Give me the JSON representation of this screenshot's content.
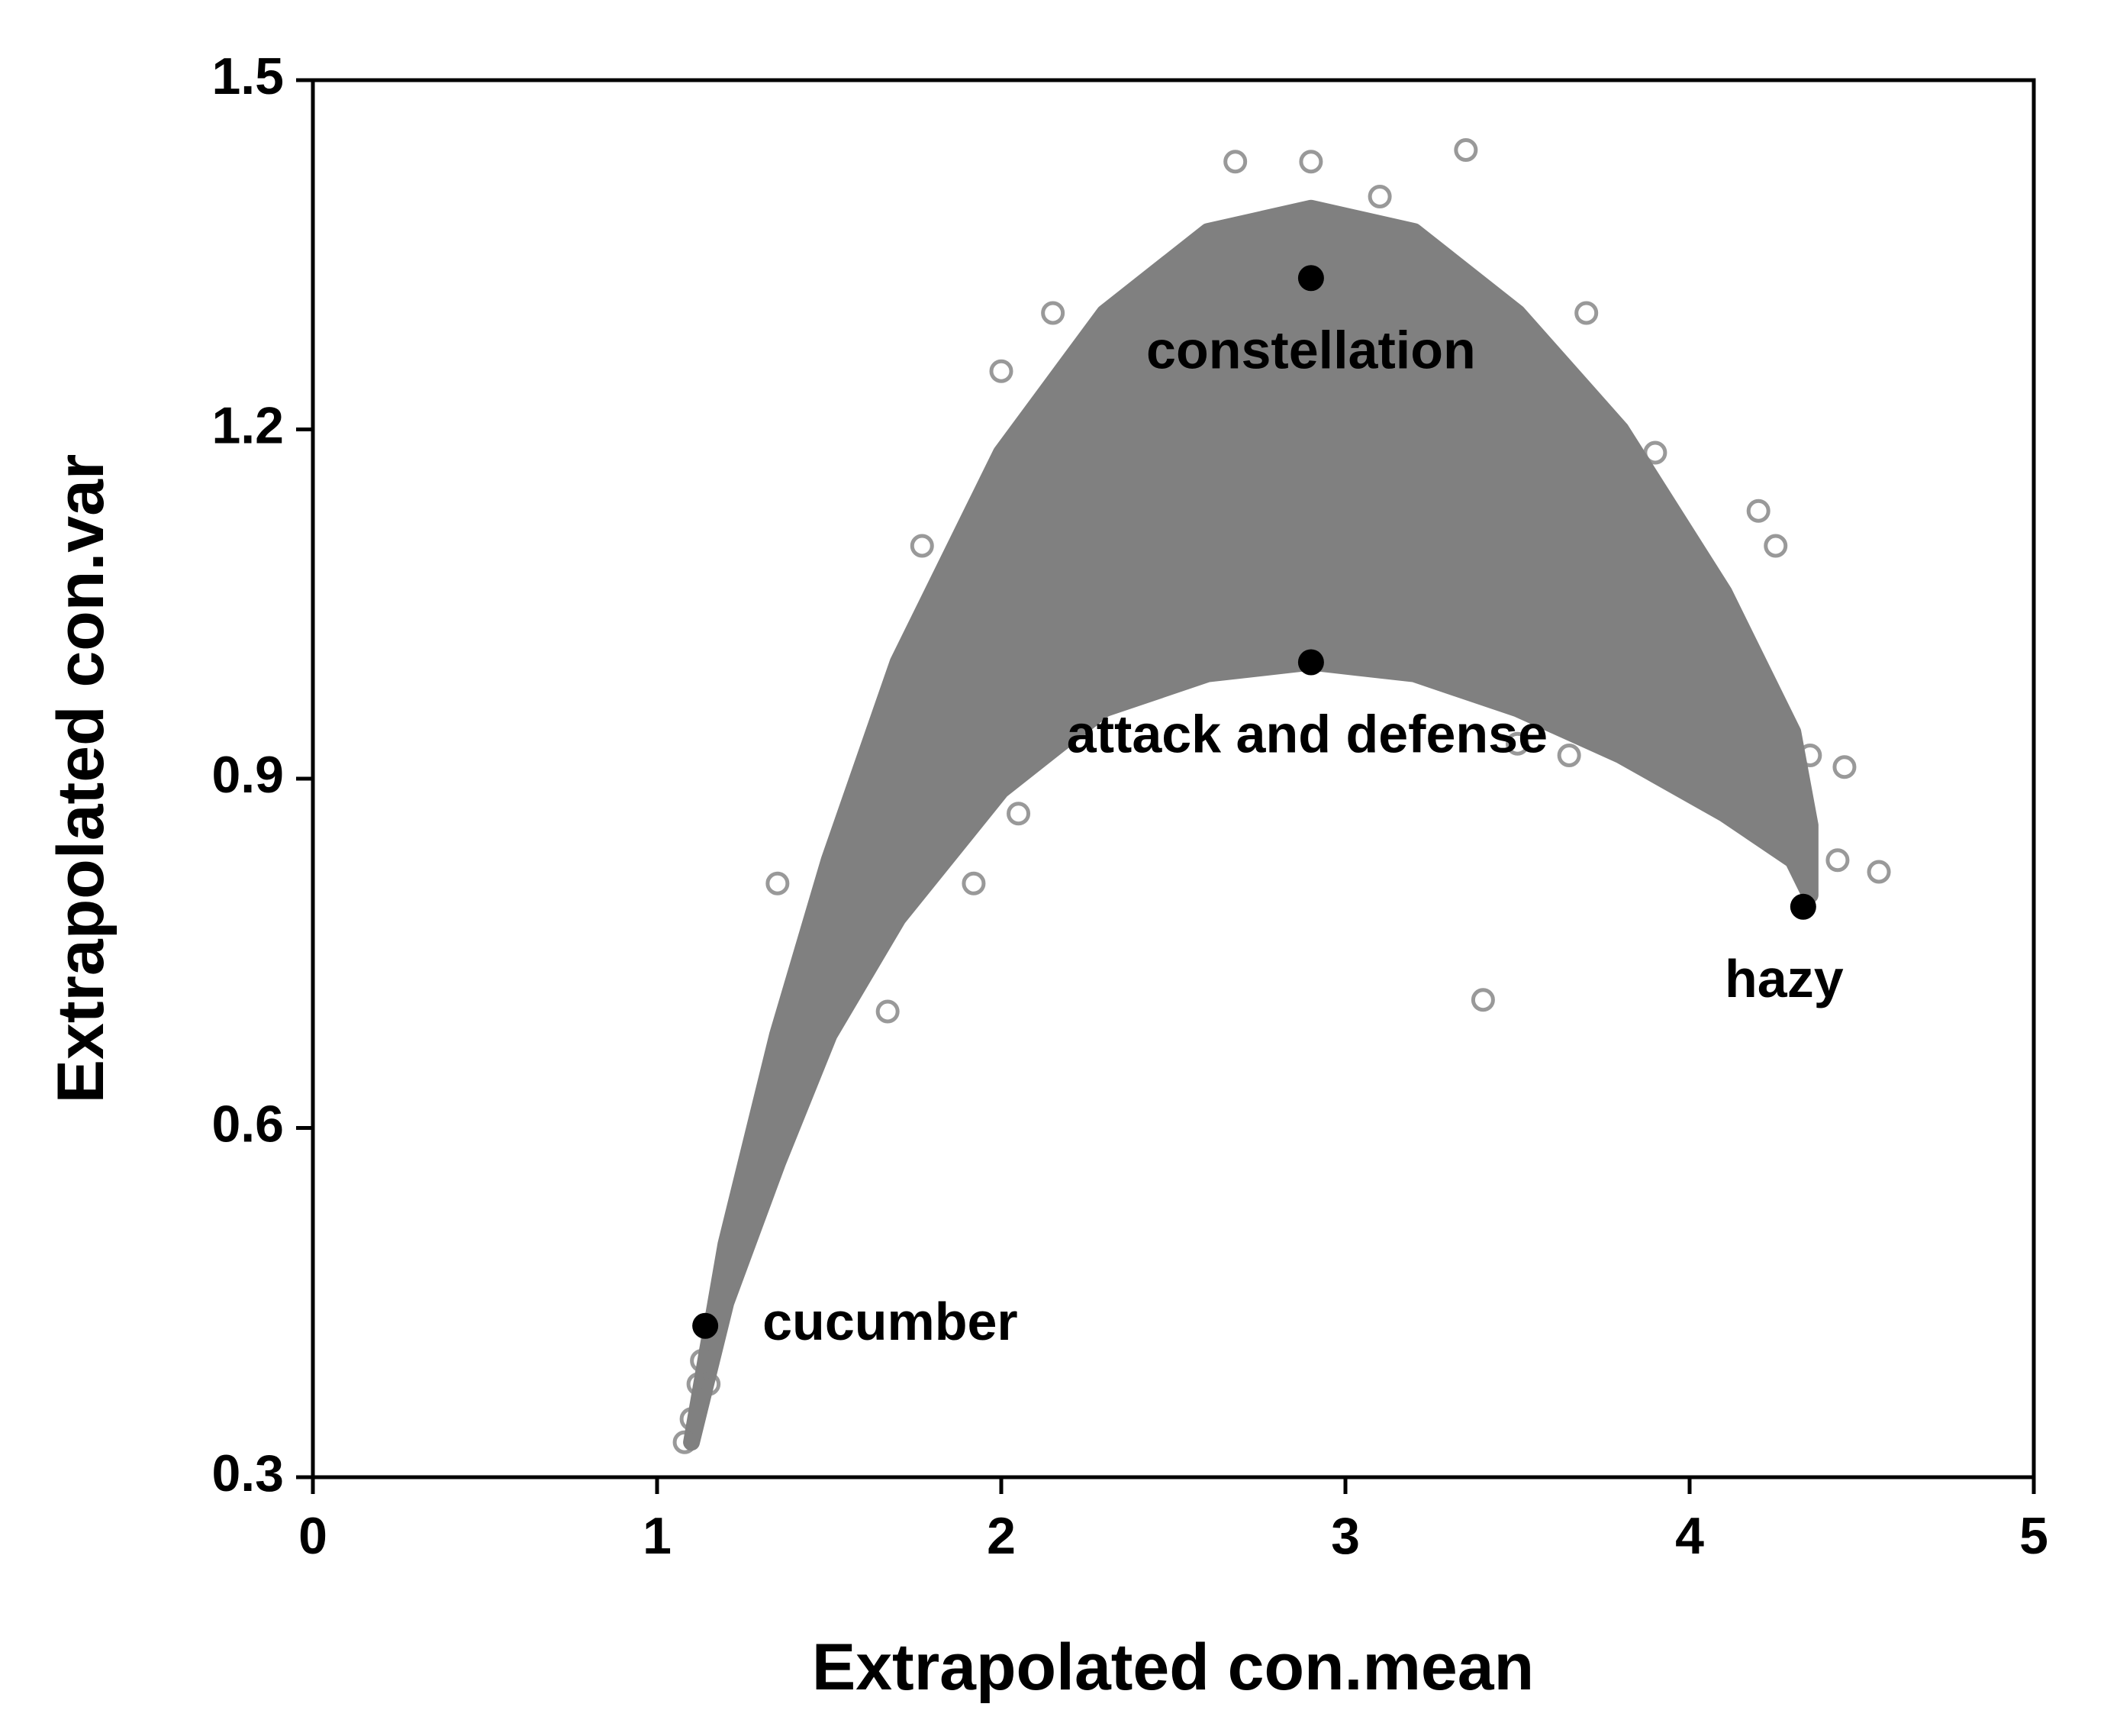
{
  "chart_data": {
    "type": "scatter",
    "title": "",
    "xlabel": "Extrapolated con.mean",
    "ylabel": "Extrapolated con.var",
    "xlim": [
      0,
      5
    ],
    "ylim": [
      0.3,
      1.5
    ],
    "xticks": [
      "0",
      "1",
      "2",
      "3",
      "4",
      "5"
    ],
    "yticks": [
      "0.3",
      "0.6",
      "0.9",
      "1.2",
      "1.5"
    ],
    "grid": false,
    "legend": "none",
    "colors": {
      "points": "#808080",
      "highlight": "#000000",
      "axis": "#000000"
    },
    "series": [
      {
        "marker": "open-circle",
        "color": "#808080",
        "description_of_cloud": {
          "upper_envelope": [
            [
              1.1,
              0.33
            ],
            [
              1.2,
              0.5
            ],
            [
              1.35,
              0.68
            ],
            [
              1.5,
              0.83
            ],
            [
              1.7,
              1.0
            ],
            [
              2.0,
              1.18
            ],
            [
              2.3,
              1.3
            ],
            [
              2.6,
              1.37
            ],
            [
              2.9,
              1.39
            ],
            [
              3.2,
              1.37
            ],
            [
              3.5,
              1.3
            ],
            [
              3.8,
              1.2
            ],
            [
              4.1,
              1.06
            ],
            [
              4.3,
              0.94
            ],
            [
              4.35,
              0.86
            ]
          ],
          "lower_envelope": [
            [
              1.1,
              0.33
            ],
            [
              1.2,
              0.45
            ],
            [
              1.35,
              0.57
            ],
            [
              1.5,
              0.68
            ],
            [
              1.7,
              0.78
            ],
            [
              2.0,
              0.89
            ],
            [
              2.3,
              0.96
            ],
            [
              2.6,
              0.99
            ],
            [
              2.9,
              1.0
            ],
            [
              3.2,
              0.99
            ],
            [
              3.5,
              0.96
            ],
            [
              3.8,
              0.92
            ],
            [
              4.1,
              0.87
            ],
            [
              4.3,
              0.83
            ],
            [
              4.35,
              0.8
            ]
          ]
        },
        "points": [
          [
            1.08,
            0.33
          ],
          [
            1.1,
            0.35
          ],
          [
            1.12,
            0.38
          ],
          [
            1.15,
            0.38
          ],
          [
            1.13,
            0.4
          ],
          [
            1.67,
            0.7
          ],
          [
            1.35,
            0.81
          ],
          [
            1.92,
            0.81
          ],
          [
            3.4,
            0.71
          ],
          [
            4.43,
            0.83
          ],
          [
            4.55,
            0.82
          ],
          [
            4.45,
            0.91
          ],
          [
            4.35,
            0.92
          ],
          [
            3.35,
            1.44
          ],
          [
            2.68,
            1.43
          ],
          [
            2.9,
            1.43
          ],
          [
            3.1,
            1.4
          ],
          [
            1.77,
            1.1
          ],
          [
            2.0,
            1.25
          ],
          [
            2.15,
            1.3
          ],
          [
            3.7,
            1.3
          ],
          [
            3.9,
            1.18
          ],
          [
            4.2,
            1.13
          ],
          [
            4.25,
            1.1
          ],
          [
            3.5,
            0.93
          ],
          [
            3.65,
            0.92
          ],
          [
            2.05,
            0.87
          ]
        ]
      }
    ],
    "highlighted_points": [
      {
        "label": "constellation",
        "x": 2.9,
        "y": 1.33
      },
      {
        "label": "attack and defense",
        "x": 2.9,
        "y": 1.0
      },
      {
        "label": "hazy",
        "x": 4.33,
        "y": 0.79
      },
      {
        "label": "cucumber",
        "x": 1.14,
        "y": 0.43
      }
    ]
  }
}
